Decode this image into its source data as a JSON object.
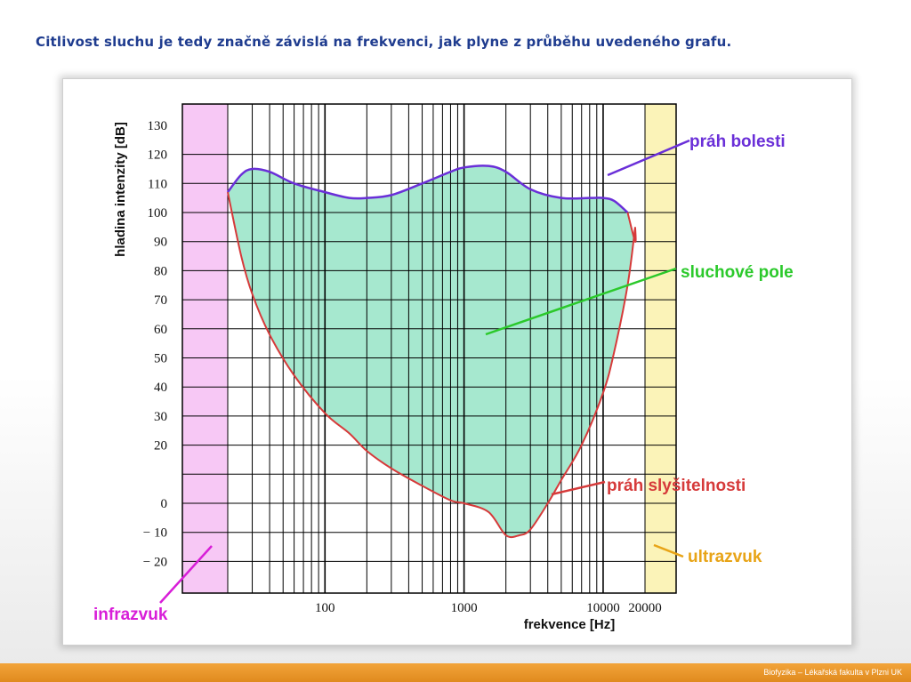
{
  "slide": {
    "title": "Citlivost sluchu je tedy značně závislá na frekvenci, jak plyne z průběhu  uvedeného grafu.",
    "footer": "Biofyzika – Lékařská fakulta v Plzni UK"
  },
  "colors": {
    "title": "#1f3c8f",
    "fill": "#a6e8cf",
    "pain_curve": "#6a2fd8",
    "threshold_curve": "#d63a3a",
    "infra_band": "#f7c8f5",
    "ultra_band": "#fbf3b8",
    "label_pain": "#6a2fd8",
    "label_field": "#2bc92b",
    "label_threshold": "#d63a3a",
    "label_ultra": "#e8a417",
    "label_infra": "#d81ed8",
    "footer_bar": "#ec9a2c"
  },
  "chart_data": {
    "type": "area",
    "xlabel": "frekvence [Hz]",
    "ylabel": "hladina intenzity [dB]",
    "x_scale": "log",
    "xlim": [
      20,
      20000
    ],
    "ylim": [
      -25,
      130
    ],
    "y_ticks": [
      130,
      120,
      110,
      100,
      90,
      80,
      70,
      60,
      50,
      40,
      30,
      20,
      0,
      -10,
      -20
    ],
    "y_tick_labels": [
      "130",
      "120",
      "110",
      "100",
      "90",
      "80",
      "70",
      "60",
      "50",
      "40",
      "30",
      "20",
      "0",
      "− 10",
      "− 20"
    ],
    "x_tick_values": [
      100,
      1000,
      10000,
      20000
    ],
    "x_tick_labels": [
      "100",
      "1000",
      "10000",
      "20000"
    ],
    "grid": true,
    "series": [
      {
        "name": "práh bolesti",
        "x": [
          20,
          25,
          30,
          40,
          60,
          100,
          150,
          200,
          300,
          500,
          800,
          1000,
          1500,
          2000,
          3000,
          5000,
          8000,
          10000,
          12000,
          15000
        ],
        "y": [
          107,
          113,
          115,
          114,
          110,
          107,
          105,
          105,
          106,
          110,
          114,
          115.5,
          116,
          114,
          108,
          105,
          105,
          105,
          104,
          100
        ]
      },
      {
        "name": "práh slyšitelnosti",
        "x": [
          20,
          25,
          30,
          40,
          60,
          100,
          150,
          200,
          300,
          500,
          800,
          1000,
          1500,
          2000,
          2500,
          3000,
          4000,
          5000,
          7000,
          10000,
          12000,
          15000,
          17000
        ],
        "y": [
          107,
          85,
          72,
          58,
          44,
          31,
          24,
          18,
          12,
          6,
          1,
          0,
          -3,
          -11,
          -11,
          -9,
          0,
          8,
          20,
          38,
          52,
          75,
          95
        ]
      }
    ],
    "regions": [
      {
        "name": "infrazvuk",
        "x": [
          12,
          20
        ]
      },
      {
        "name": "ultrazvuk",
        "x": [
          20000,
          32000
        ]
      }
    ],
    "annotations": [
      {
        "text": "práh bolesti",
        "target": "práh bolesti"
      },
      {
        "text": "sluchové pole",
        "target": "area"
      },
      {
        "text": "práh slyšitelnosti",
        "target": "práh slyšitelnosti"
      },
      {
        "text": "ultrazvuk",
        "target": "ultrazvuk"
      },
      {
        "text": "infrazvuk",
        "target": "infrazvuk"
      }
    ]
  }
}
